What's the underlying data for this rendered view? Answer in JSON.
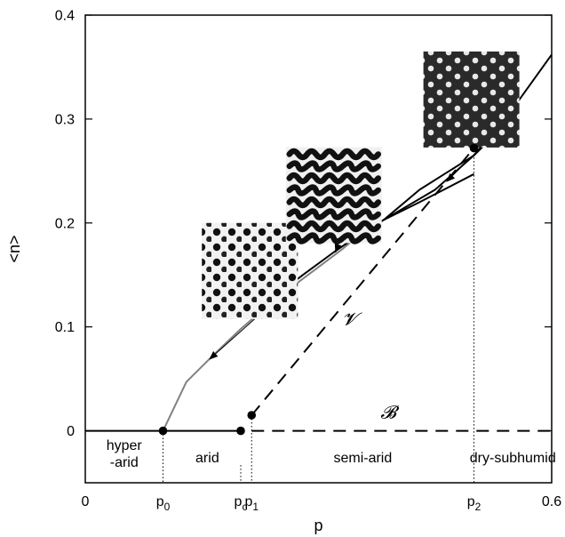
{
  "chart_data": {
    "type": "line",
    "xlabel": "p",
    "ylabel": "<n>",
    "xlim": [
      0,
      0.6
    ],
    "ylim": [
      -0.05,
      0.4
    ],
    "grid": false,
    "x_tick_labels": [
      {
        "x": 0,
        "label": "0"
      },
      {
        "x": 0.6,
        "label": "0.6"
      }
    ],
    "y_ticks": [
      0,
      0.1,
      0.2,
      0.3,
      0.4
    ],
    "y_tick_labels": [
      "0",
      "0.1",
      "0.2",
      "0.3",
      "0.4"
    ],
    "thresholds": [
      {
        "name": "p0",
        "base": "p",
        "sub": "0",
        "x": 0.1,
        "line_top": 0.0
      },
      {
        "name": "pc",
        "base": "p",
        "sub": "c",
        "x": 0.2,
        "line_top": -0.033
      },
      {
        "name": "p1",
        "base": "p",
        "sub": "1",
        "x": 0.214,
        "line_top": 0.015
      },
      {
        "name": "p2",
        "base": "p",
        "sub": "2",
        "x": 0.5,
        "line_top": 0.263
      }
    ],
    "regions": [
      {
        "label_lines": [
          "hyper",
          "-arid"
        ],
        "x": 0.05
      },
      {
        "label_lines": [
          "arid"
        ],
        "x": 0.157
      },
      {
        "label_lines": [
          "semi-arid"
        ],
        "x": 0.357
      },
      {
        "label_lines": [
          "dry-subhumid"
        ],
        "x": 0.55
      }
    ],
    "series": [
      {
        "name": "B",
        "style": "dashed",
        "color": "#000000",
        "x": [
          0.214,
          0.6
        ],
        "y": [
          0.0,
          0.0
        ]
      },
      {
        "name": "V",
        "style": "dashed",
        "color": "#000000",
        "x": [
          0.214,
          0.5
        ],
        "y": [
          0.015,
          0.272
        ]
      },
      {
        "name": "base",
        "style": "solid",
        "color": "#000000",
        "x": [
          0.0,
          0.1
        ],
        "y": [
          0.0,
          0.0
        ]
      },
      {
        "name": "arid-base",
        "style": "solid",
        "color": "#000000",
        "x": [
          0.1,
          0.2
        ],
        "y": [
          0.0,
          0.0
        ]
      },
      {
        "name": "spots",
        "style": "solid",
        "color": "#808080",
        "x": [
          0.1,
          0.13,
          0.165,
          0.2,
          0.24,
          0.29,
          0.331,
          0.376
        ],
        "y": [
          0.0,
          0.047,
          0.073,
          0.098,
          0.124,
          0.152,
          0.175,
          0.203
        ]
      },
      {
        "name": "labyrinth-upper",
        "style": "solid",
        "color": "#000000",
        "x": [
          0.236,
          0.25,
          0.28,
          0.32,
          0.349,
          0.384,
          0.45,
          0.5
        ],
        "y": [
          0.113,
          0.133,
          0.15,
          0.172,
          0.187,
          0.203,
          0.232,
          0.265
        ]
      },
      {
        "name": "labyrinth-lower",
        "style": "solid",
        "color": "#000000",
        "x": [
          0.345,
          0.357,
          0.43,
          0.5
        ],
        "y": [
          0.185,
          0.193,
          0.22,
          0.247
        ]
      },
      {
        "name": "gaps-inner",
        "style": "solid",
        "color": "#000000",
        "x": [
          0.384,
          0.43,
          0.5,
          0.55,
          0.6
        ],
        "y": [
          0.203,
          0.232,
          0.265,
          0.31,
          0.362
        ]
      },
      {
        "name": "gaps-outer",
        "style": "solid",
        "color": "#000000",
        "x": [
          0.5,
          0.545,
          0.55
        ],
        "y": [
          0.265,
          0.298,
          0.31
        ]
      }
    ],
    "points": [
      {
        "x": 0.1,
        "y": 0.0
      },
      {
        "x": 0.2,
        "y": 0.0
      },
      {
        "x": 0.214,
        "y": 0.015
      },
      {
        "x": 0.5,
        "y": 0.272
      }
    ],
    "curve_labels": [
      {
        "text": "𝓑",
        "x": 0.39,
        "y": 0.012
      },
      {
        "text": "𝓥",
        "x": 0.34,
        "y": 0.102
      }
    ],
    "insets": [
      {
        "name": "spots-pattern",
        "pattern": "dark spots on light background",
        "at_x": 0.15,
        "at_y": 0.2,
        "arrow_to_x": 0.16,
        "arrow_to_y": 0.069
      },
      {
        "name": "labyrinth-pattern",
        "pattern": "labyrinth stripes",
        "at_x": 0.258,
        "at_y": 0.273,
        "arrow_to_x": 0.322,
        "arrow_to_y": 0.172
      },
      {
        "name": "gaps-pattern",
        "pattern": "light spots on dark background",
        "at_x": 0.435,
        "at_y": 0.365,
        "arrow_to_x": 0.465,
        "arrow_to_y": 0.24
      }
    ]
  }
}
